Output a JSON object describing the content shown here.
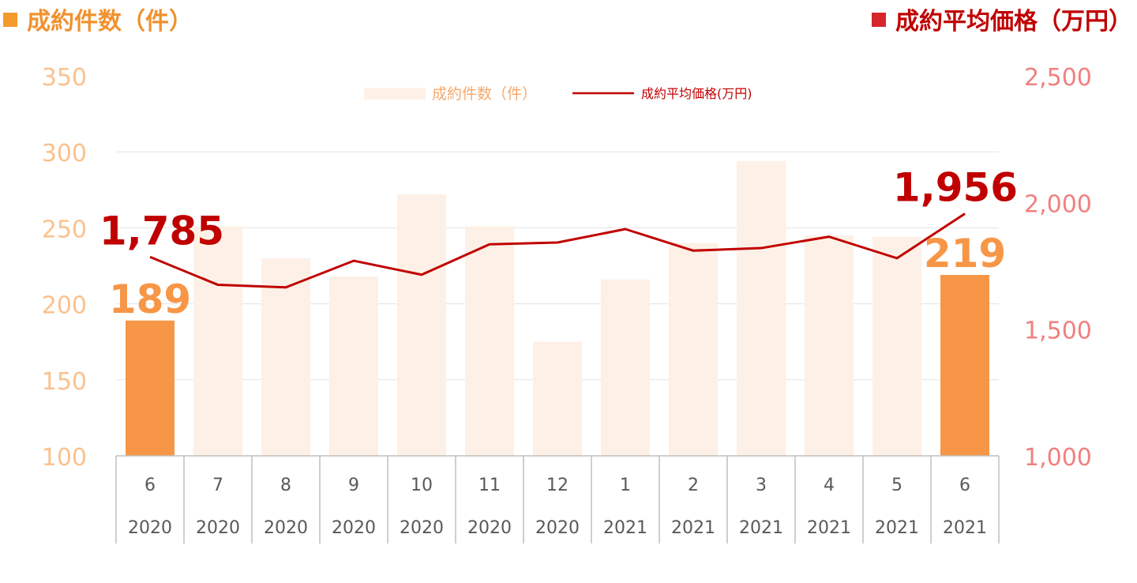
{
  "header": {
    "left_title": "成約件数（件）",
    "right_title": "成約平均価格（万円）",
    "left_marker_color": "#F39A2E",
    "right_marker_color": "#D6262E"
  },
  "chart_data": {
    "type": "bar+line",
    "categories": [
      {
        "month": "6",
        "year": "2020"
      },
      {
        "month": "7",
        "year": "2020"
      },
      {
        "month": "8",
        "year": "2020"
      },
      {
        "month": "9",
        "year": "2020"
      },
      {
        "month": "10",
        "year": "2020"
      },
      {
        "month": "11",
        "year": "2020"
      },
      {
        "month": "12",
        "year": "2020"
      },
      {
        "month": "1",
        "year": "2021"
      },
      {
        "month": "2",
        "year": "2021"
      },
      {
        "month": "3",
        "year": "2021"
      },
      {
        "month": "4",
        "year": "2021"
      },
      {
        "month": "5",
        "year": "2021"
      },
      {
        "month": "6",
        "year": "2021"
      }
    ],
    "bar_series": {
      "name": "成約件数（件）",
      "values": [
        189,
        251,
        230,
        218,
        272,
        251,
        175,
        216,
        240,
        294,
        245,
        244,
        219
      ],
      "highlight_color": "#F79646",
      "muted_color": "#FDF0E6",
      "highlight_indices": [
        0,
        12
      ]
    },
    "line_series": {
      "name": "成約平均価格(万円)",
      "values": [
        1785,
        1675,
        1665,
        1770,
        1715,
        1835,
        1842,
        1895,
        1810,
        1820,
        1865,
        1780,
        1956
      ],
      "color": "#C00000"
    },
    "y_left": {
      "ylim": [
        100,
        350
      ],
      "ticks": [
        "100",
        "150",
        "200",
        "250",
        "300",
        "350"
      ],
      "color": "#F9C28E"
    },
    "y_right": {
      "ylim": [
        1000,
        2500
      ],
      "ticks": [
        "1,000",
        "1,500",
        "2,000",
        "2,500"
      ],
      "color": "#F08080"
    },
    "data_labels": {
      "bar_first": "189",
      "bar_last": "219",
      "line_first": "1,785",
      "line_last": "1,956"
    },
    "legend": {
      "position": "top-center"
    },
    "grid": true
  }
}
